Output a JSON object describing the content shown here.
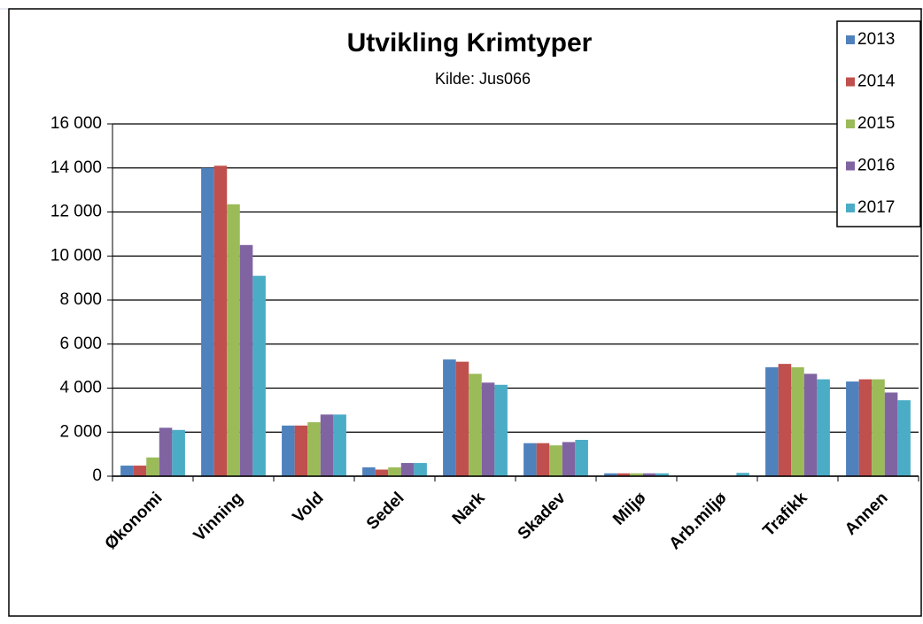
{
  "chart_data": {
    "type": "bar",
    "title": "Utvikling Krimtyper",
    "subtitle": "Kilde: Jus066",
    "categories": [
      "Økonomi",
      "Vinning",
      "Vold",
      "Sedel",
      "Nark",
      "Skadev",
      "Miljø",
      "Arb.miljø",
      "Trafikk",
      "Annen"
    ],
    "series": [
      {
        "name": "2013",
        "color": "#4f81bd",
        "values": [
          480,
          14000,
          2300,
          400,
          5300,
          1500,
          130,
          20,
          4950,
          4300
        ]
      },
      {
        "name": "2014",
        "color": "#c0504d",
        "values": [
          480,
          14100,
          2300,
          300,
          5200,
          1500,
          130,
          20,
          5100,
          4400
        ]
      },
      {
        "name": "2015",
        "color": "#9bbb59",
        "values": [
          850,
          12350,
          2450,
          400,
          4650,
          1400,
          130,
          20,
          4950,
          4400
        ]
      },
      {
        "name": "2016",
        "color": "#8064a2",
        "values": [
          2200,
          10500,
          2800,
          600,
          4250,
          1550,
          130,
          20,
          4650,
          3800
        ]
      },
      {
        "name": "2017",
        "color": "#4bacc6",
        "values": [
          2100,
          9100,
          2800,
          600,
          4150,
          1650,
          130,
          150,
          4400,
          3450
        ]
      }
    ],
    "ylim": [
      0,
      16000
    ],
    "yticks": [
      0,
      {
        "value": 2000,
        "label": "2 000"
      },
      {
        "value": 4000,
        "label": "4 000"
      },
      {
        "value": 6000,
        "label": "6 000"
      },
      {
        "value": 8000,
        "label": "8 000"
      },
      {
        "value": 10000,
        "label": "10 000"
      },
      {
        "value": 12000,
        "label": "12 000"
      },
      {
        "value": 14000,
        "label": "14 000"
      },
      {
        "value": 16000,
        "label": "16 000"
      }
    ],
    "grid": true,
    "legend": "top-right"
  }
}
